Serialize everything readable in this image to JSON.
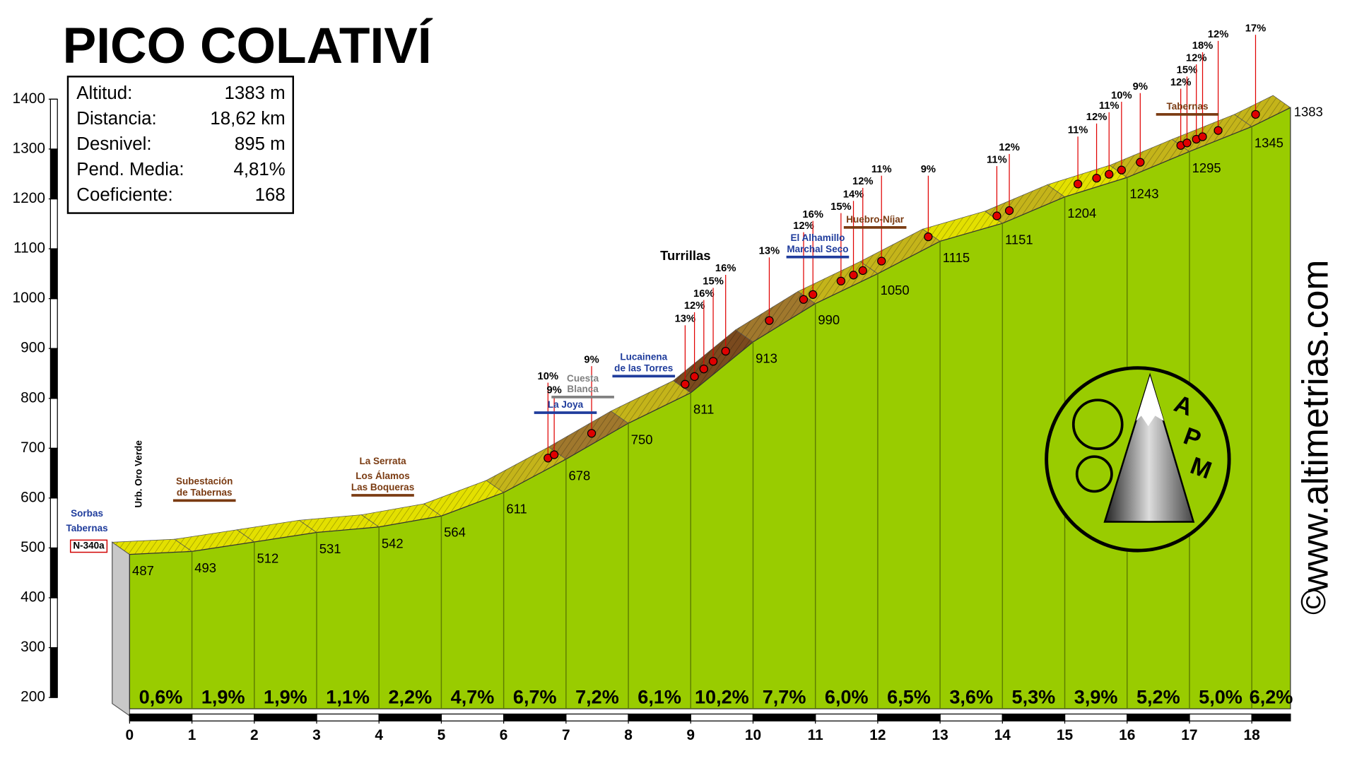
{
  "chart_data": {
    "type": "area",
    "title": "PICO COLATIVÍ",
    "x": [
      0,
      1,
      2,
      3,
      4,
      5,
      6,
      7,
      8,
      9,
      10,
      11,
      12,
      13,
      14,
      15,
      16,
      17,
      18,
      18.62
    ],
    "values": [
      487,
      493,
      512,
      531,
      542,
      564,
      611,
      678,
      750,
      811,
      913,
      990,
      1050,
      1115,
      1151,
      1204,
      1243,
      1295,
      1345,
      1383
    ],
    "xlim": [
      0,
      18.62
    ],
    "ylim": [
      200,
      1400
    ],
    "xticks": [
      0,
      1,
      2,
      3,
      4,
      5,
      6,
      7,
      8,
      9,
      10,
      11,
      12,
      13,
      14,
      15,
      16,
      17,
      18
    ],
    "yticks": [
      200,
      300,
      400,
      500,
      600,
      700,
      800,
      900,
      1000,
      1100,
      1200,
      1300,
      1400
    ],
    "color": "#99cc00",
    "segment_labels": [
      "0,6%",
      "1,9%",
      "1,9%",
      "1,1%",
      "2,2%",
      "4,7%",
      "6,7%",
      "7,2%",
      "6,1%",
      "10,2%",
      "7,7%",
      "6,0%",
      "6,5%",
      "3,6%",
      "5,3%",
      "3,9%",
      "5,2%",
      "5,0%",
      "6,2%"
    ],
    "pins": [
      {
        "km": 6.85,
        "label": "10%"
      },
      {
        "km": 6.95,
        "label": "9%"
      },
      {
        "km": 7.55,
        "label": "9%"
      },
      {
        "km": 9.05,
        "label": "13%"
      },
      {
        "km": 9.2,
        "label": "12%"
      },
      {
        "km": 9.35,
        "label": "16%"
      },
      {
        "km": 9.5,
        "label": "15%"
      },
      {
        "km": 9.7,
        "label": "16%"
      },
      {
        "km": 10.4,
        "label": "13%"
      },
      {
        "km": 10.95,
        "label": "12%"
      },
      {
        "km": 11.1,
        "label": "16%"
      },
      {
        "km": 11.55,
        "label": "15%"
      },
      {
        "km": 11.75,
        "label": "14%"
      },
      {
        "km": 11.9,
        "label": "12%"
      },
      {
        "km": 12.2,
        "label": "11%"
      },
      {
        "km": 12.95,
        "label": "9%"
      },
      {
        "km": 14.05,
        "label": "11%"
      },
      {
        "km": 14.25,
        "label": "12%"
      },
      {
        "km": 15.35,
        "label": "11%"
      },
      {
        "km": 15.65,
        "label": "12%"
      },
      {
        "km": 15.85,
        "label": "11%"
      },
      {
        "km": 16.05,
        "label": "10%"
      },
      {
        "km": 16.35,
        "label": "9%"
      },
      {
        "km": 17.0,
        "label": "12%"
      },
      {
        "km": 17.1,
        "label": "15%"
      },
      {
        "km": 17.25,
        "label": "12%"
      },
      {
        "km": 17.35,
        "label": "18%"
      },
      {
        "km": 17.6,
        "label": "12%"
      },
      {
        "km": 18.2,
        "label": "17%"
      }
    ],
    "annotations": [
      {
        "text": "Sorbas",
        "color": "#1f3c9c"
      },
      {
        "text": "Tabernas",
        "color": "#1f3c9c"
      },
      {
        "text": "N-340a",
        "color": "#000000"
      },
      {
        "text": "Urb. Oro Verde",
        "color": "#000000"
      },
      {
        "text": "Subestación",
        "color": "#7a3b12"
      },
      {
        "text": "de Tabernas",
        "color": "#7a3b12"
      },
      {
        "text": "La Serrata",
        "color": "#7a3b12"
      },
      {
        "text": "Los Álamos",
        "color": "#7a3b12"
      },
      {
        "text": "Las Boqueras",
        "color": "#7a3b12"
      },
      {
        "text": "Cuesta",
        "color": "#808080"
      },
      {
        "text": "Blanca",
        "color": "#808080"
      },
      {
        "text": "La Joya",
        "color": "#1f3c9c"
      },
      {
        "text": "Lucainena",
        "color": "#1f3c9c"
      },
      {
        "text": "de las Torres",
        "color": "#1f3c9c"
      },
      {
        "text": "Turrillas",
        "color": "#000000"
      },
      {
        "text": "El Alhamillo",
        "color": "#1f3c9c"
      },
      {
        "text": "Marchal Seco",
        "color": "#1f3c9c"
      },
      {
        "text": "Huebro-Níjar",
        "color": "#7a3b12"
      },
      {
        "text": "Tabernas",
        "color": "#7a3b12"
      }
    ]
  },
  "info_box": [
    {
      "label": "Altitud:",
      "value": "1383 m"
    },
    {
      "label": "Distancia:",
      "value": "18,62 km"
    },
    {
      "label": "Desnivel:",
      "value": "895 m"
    },
    {
      "label": "Pend. Media:",
      "value": "4,81%"
    },
    {
      "label": "Coeficiente:",
      "value": "168"
    }
  ],
  "logo": {
    "letters": [
      "A",
      "P",
      "M"
    ]
  },
  "watermark": {
    "url": "www.altimetrias.com",
    "copyright": "©"
  }
}
